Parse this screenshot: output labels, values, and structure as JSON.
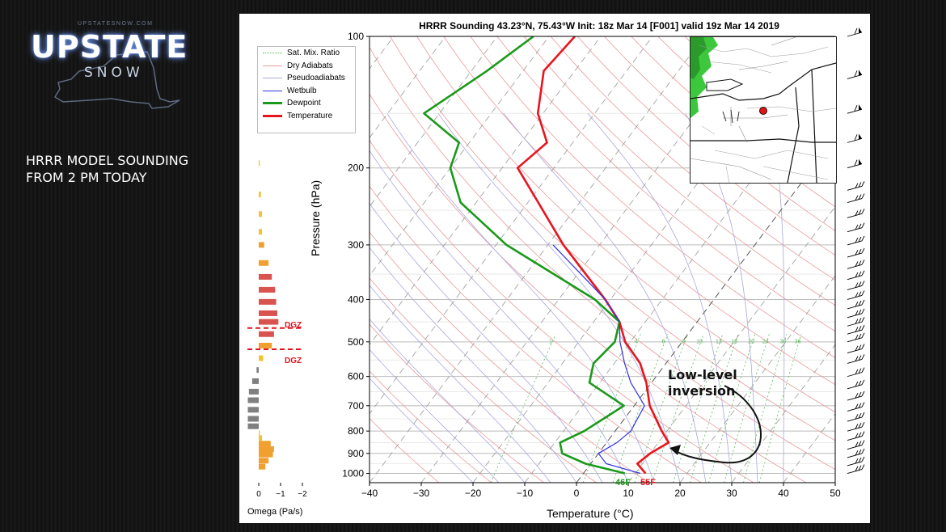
{
  "brand": {
    "top_text": "UPSTATESNOW.COM",
    "name": "UPSTATE",
    "sub": "SNOW"
  },
  "caption": [
    "HRRR MODEL SOUNDING",
    "FROM 2 PM TODAY"
  ],
  "colors": {
    "temperature": "#e8141e",
    "dewpoint": "#1a9a1a",
    "wetbulb": "#3333dd",
    "dry_adiabat": "#e89a9a",
    "pseudoadiabat": "#a8a8dd",
    "mix_ratio": "#5cb85c",
    "dgz": "#e0141e",
    "omega_gray": "#808080",
    "omega_orange": "#f0a030",
    "omega_yellow": "#f4c430",
    "omega_red": "#d9534f"
  },
  "map_icons": [
    "state-boundary-map",
    "location-marker-icon"
  ],
  "chart_data": [
    {
      "type": "line",
      "title": "HRRR Sounding 43.23°N, 75.43°W Init: 18z Mar 14 [F001] valid 19z Mar 14 2019",
      "xlabel": "Temperature (°C)",
      "ylabel": "Pressure (hPa)",
      "xlim": [
        -40,
        50
      ],
      "ylim": [
        1050,
        100
      ],
      "y_scale": "log",
      "grid": true,
      "skew": true,
      "legend_position": "top-left",
      "x_ticks": [
        "−40",
        "−30",
        "−20",
        "−10",
        "0",
        "10",
        "20",
        "30",
        "40",
        "50"
      ],
      "y_ticks": [
        "100",
        "200",
        "300",
        "400",
        "500",
        "600",
        "700",
        "800",
        "900",
        "1000"
      ],
      "legend": [
        "Sat. Mix. Ratio",
        "Dry Adiabats",
        "Pseudoadiabats",
        "Wetbulb",
        "Dewpoint",
        "Temperature"
      ],
      "mix_ratio_labels": [
        "1",
        "4",
        "6",
        "8",
        "10",
        "13",
        "16",
        "20",
        "24",
        "30",
        "36"
      ],
      "series": [
        {
          "name": "Temperature",
          "pressure": [
            100,
            120,
            150,
            175,
            200,
            240,
            300,
            400,
            450,
            500,
            560,
            620,
            700,
            800,
            850,
            900,
            950,
            1000
          ],
          "temp": [
            -65,
            -66,
            -61,
            -55,
            -57,
            -48,
            -37,
            -21,
            -15,
            -11,
            -5,
            -1,
            3,
            9,
            12,
            10,
            9,
            12
          ]
        },
        {
          "name": "Dewpoint",
          "pressure": [
            100,
            120,
            150,
            175,
            200,
            240,
            300,
            400,
            450,
            500,
            560,
            620,
            700,
            800,
            850,
            900,
            950,
            1000
          ],
          "temp": [
            -73,
            -77,
            -83,
            -72,
            -70,
            -63,
            -48,
            -23,
            -15,
            -13,
            -14,
            -12,
            -2,
            -6,
            -9,
            -7,
            -1,
            8
          ]
        },
        {
          "name": "Wetbulb",
          "pressure": [
            300,
            400,
            450,
            500,
            560,
            620,
            700,
            800,
            850,
            900,
            950,
            1000
          ],
          "temp": [
            -39,
            -21,
            -15,
            -12,
            -8,
            -4,
            2,
            3,
            2,
            0,
            3,
            11
          ]
        }
      ],
      "surface_labels": {
        "dewpoint": "46F",
        "temperature": "55F"
      },
      "annotations": [
        "Low-level",
        "inversion"
      ],
      "dgz_label": "DGZ",
      "dgz_pressures": [
        465,
        520
      ]
    },
    {
      "type": "bar",
      "xlabel": "Omega (Pa/s)",
      "x_ticks": [
        "0",
        "−1",
        "−2"
      ],
      "xlim": [
        0,
        -2
      ],
      "orientation": "horizontal",
      "pressure": [
        195,
        230,
        255,
        280,
        300,
        330,
        355,
        380,
        405,
        430,
        450,
        480,
        510,
        545,
        580,
        615,
        650,
        680,
        715,
        750,
        780,
        810,
        830,
        855,
        880,
        905,
        935,
        965
      ],
      "omega": [
        -0.05,
        -0.1,
        -0.15,
        -0.15,
        -0.25,
        -0.45,
        -0.6,
        -0.75,
        -0.8,
        -0.85,
        -0.9,
        -0.7,
        -0.6,
        -0.2,
        0.1,
        0.3,
        0.45,
        0.5,
        0.5,
        0.5,
        0.5,
        -0.05,
        -0.15,
        -0.55,
        -0.7,
        -0.65,
        -0.45,
        -0.3
      ]
    }
  ]
}
